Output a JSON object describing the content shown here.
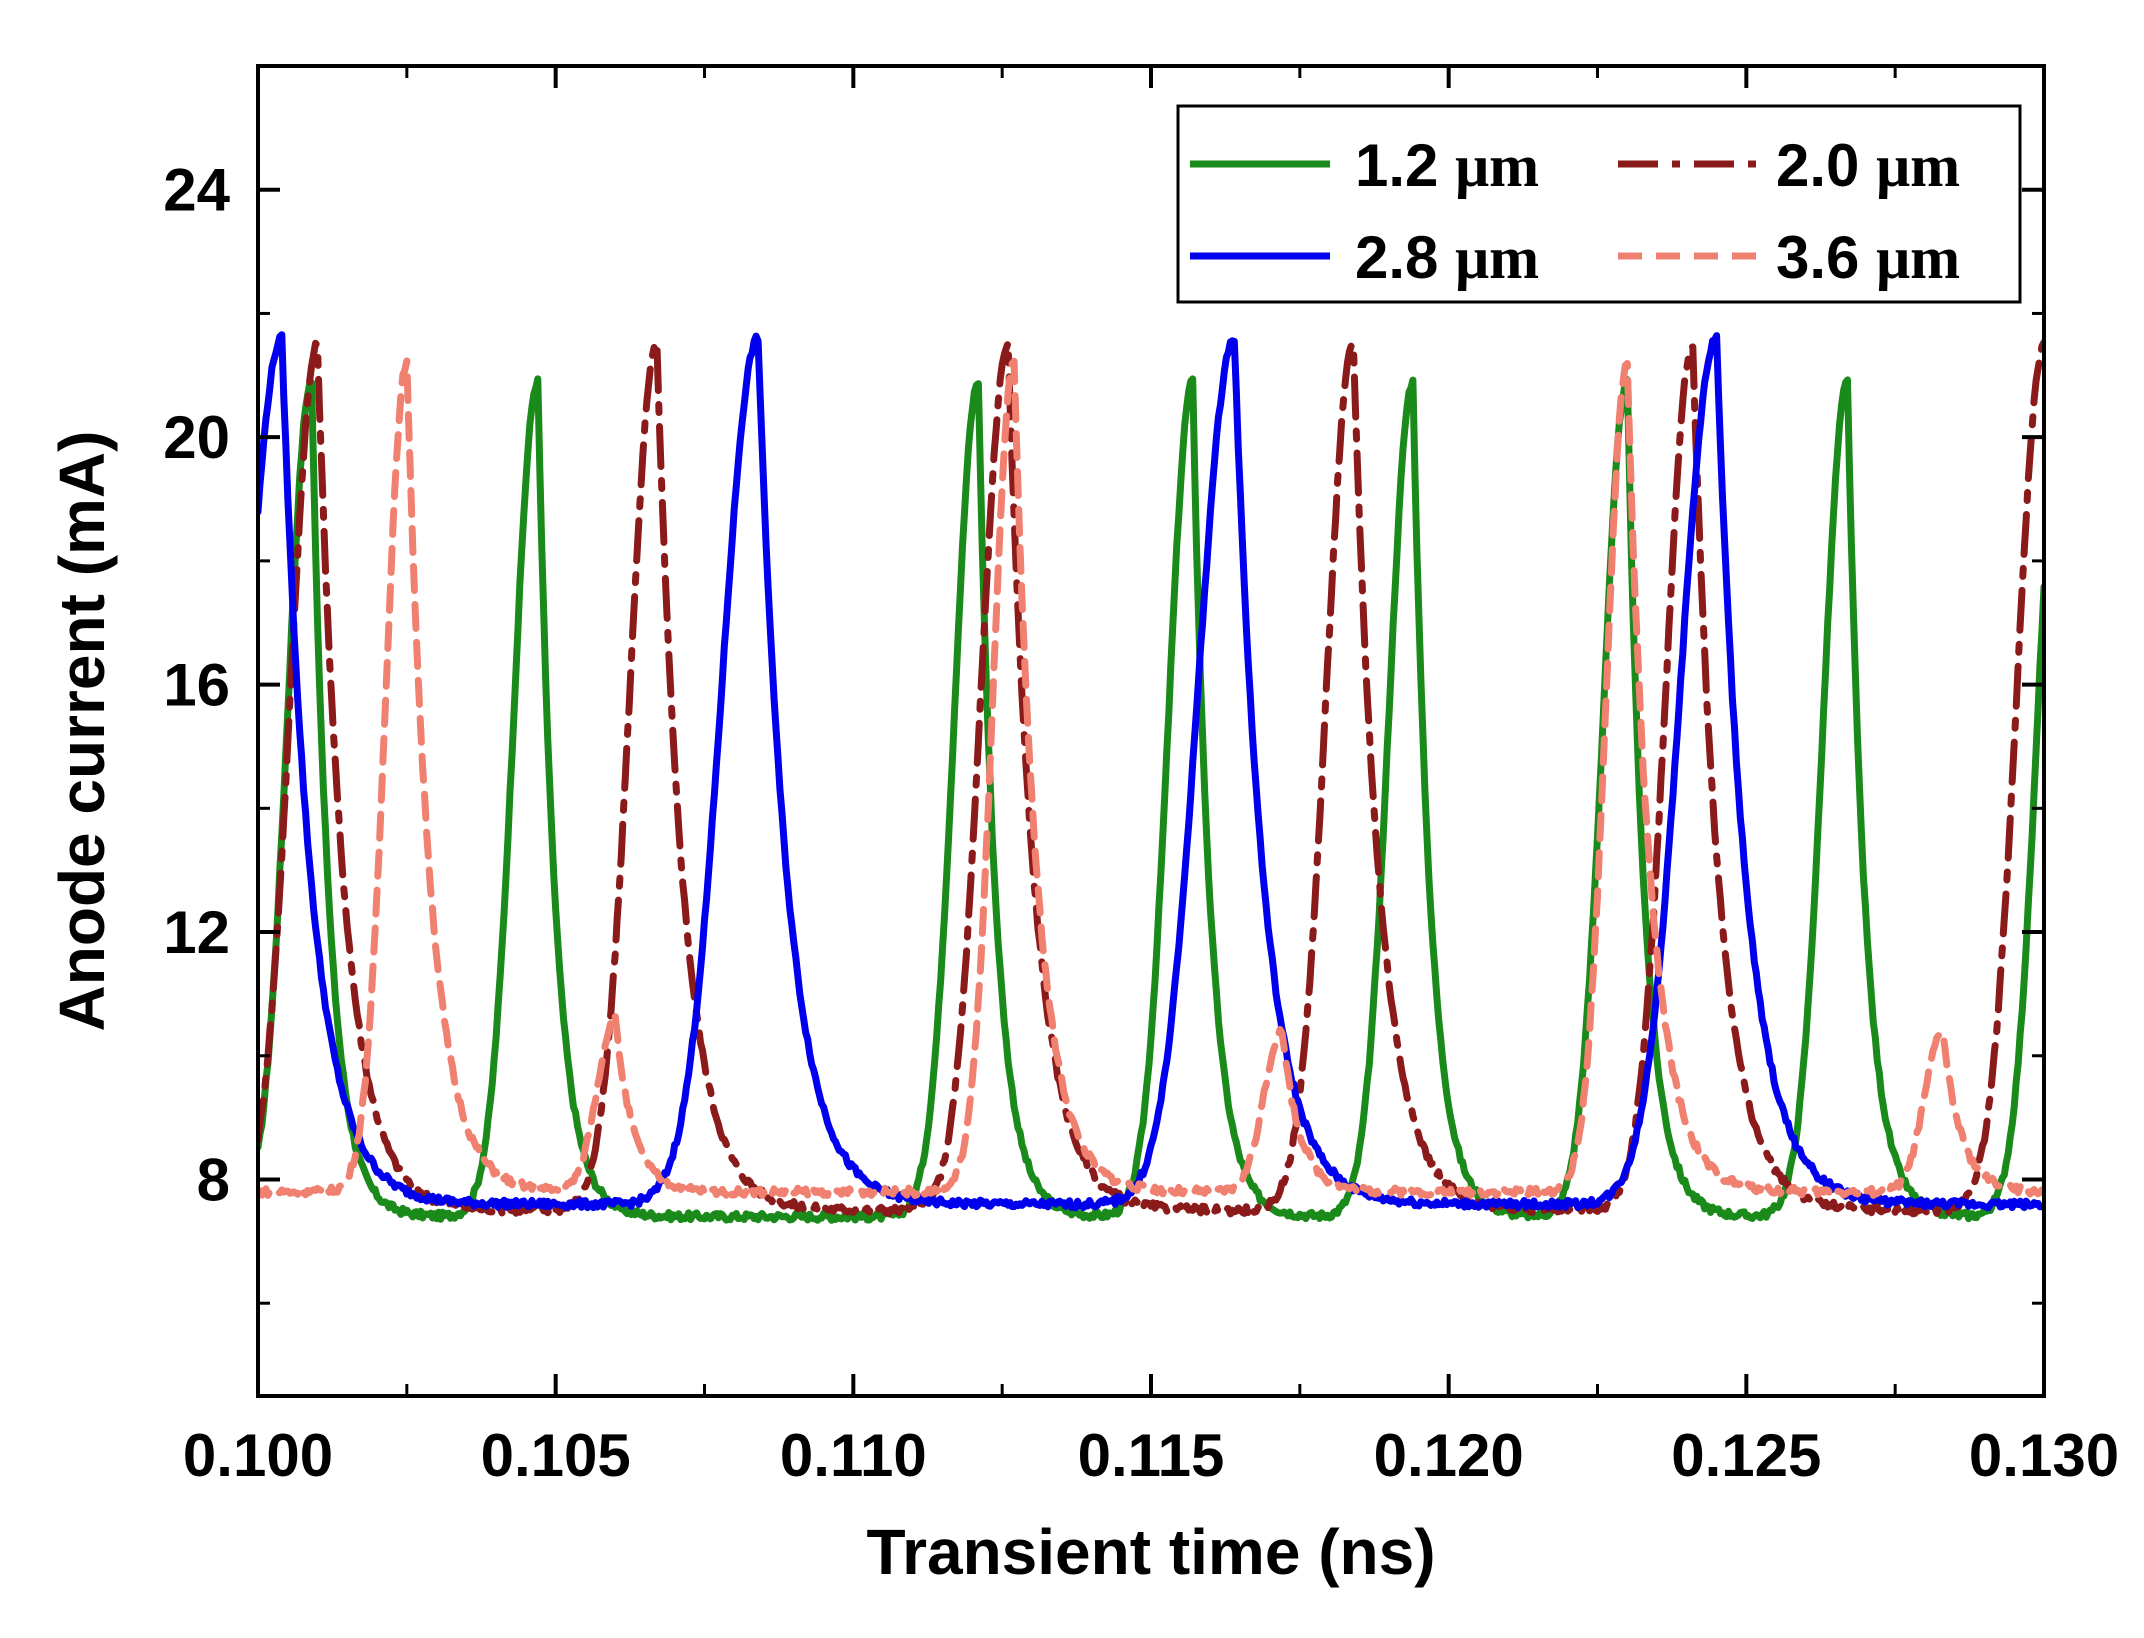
{
  "chart_data": {
    "type": "line",
    "title": "",
    "xlabel": "Transient time (ns)",
    "ylabel": "Anode current (mA)",
    "xlim": [
      0.1,
      0.13
    ],
    "ylim": [
      4.5,
      26
    ],
    "x_ticks": [
      0.1,
      0.105,
      0.11,
      0.115,
      0.12,
      0.125,
      0.13
    ],
    "x_tick_labels": [
      "0.100",
      "0.105",
      "0.110",
      "0.115",
      "0.120",
      "0.125",
      "0.130"
    ],
    "y_ticks": [
      8,
      12,
      16,
      20,
      24
    ],
    "y_tick_labels": [
      "8",
      "12",
      "16",
      "20",
      "24"
    ],
    "legend_position": "top-right",
    "legend_unit": "μm",
    "series": [
      {
        "name": "1.2 μm",
        "value_label": "1.2",
        "color": "#1a8a1a",
        "style": "solid",
        "baseline": 7.4,
        "peak": 20.9,
        "peak_times": [
          0.1009,
          0.1047,
          0.1121,
          0.1157,
          0.1194,
          0.123,
          0.1267,
          0.1303
        ]
      },
      {
        "name": "2.0 μm",
        "value_label": "2.0",
        "color": "#8b1a1a",
        "style": "dashdot",
        "baseline": 7.5,
        "peak": 21.5,
        "peak_times": [
          0.101,
          0.1067,
          0.1126,
          0.1184,
          0.1241,
          0.13
        ]
      },
      {
        "name": "2.8 μm",
        "value_label": "2.8",
        "color": "#0000ee",
        "style": "solid",
        "baseline": 7.6,
        "peak": 21.6,
        "peak_times": [
          0.1004,
          0.1084,
          0.1164,
          0.1245
        ]
      },
      {
        "name": "3.6 μm",
        "value_label": "3.6",
        "color": "#f08070",
        "style": "dashed",
        "baseline": 7.8,
        "major_peaks": [
          {
            "x": 0.1025,
            "y": 21.2
          },
          {
            "x": 0.1127,
            "y": 21.2
          },
          {
            "x": 0.123,
            "y": 21.2
          }
        ],
        "minor_peaks": [
          {
            "x": 0.106,
            "y": 10.6
          },
          {
            "x": 0.1172,
            "y": 10.4
          },
          {
            "x": 0.1283,
            "y": 10.4
          }
        ]
      }
    ]
  }
}
